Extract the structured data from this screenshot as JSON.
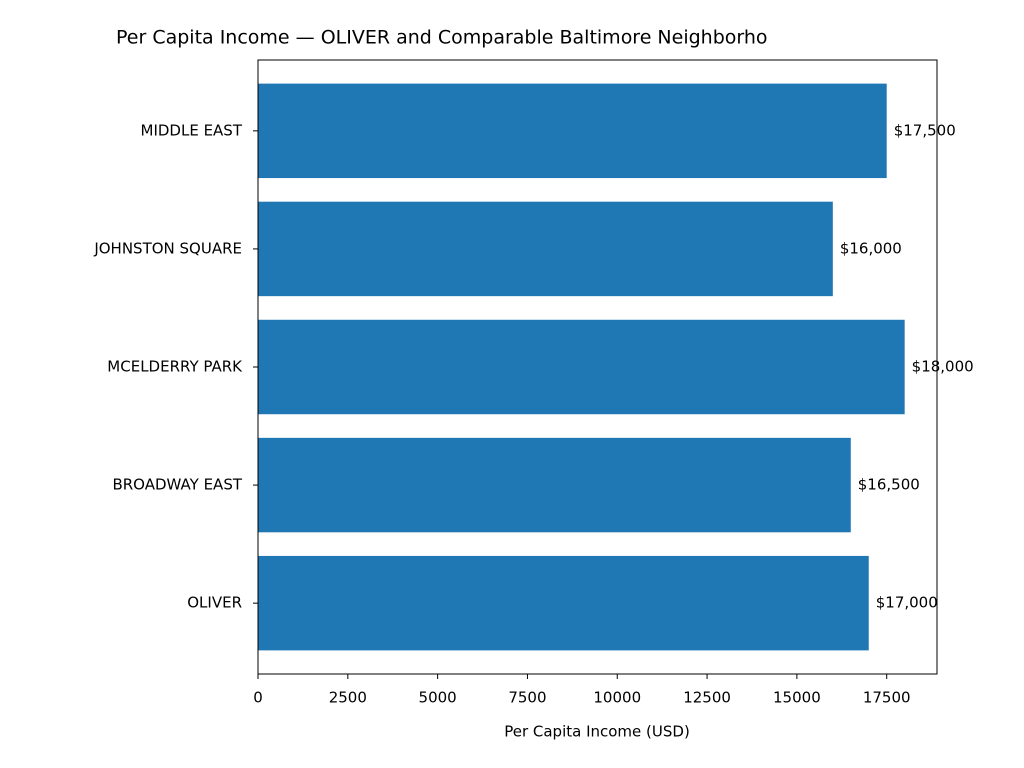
{
  "chart_data": {
    "type": "barh",
    "title": "Per Capita Income — OLIVER and Comparable Baltimore Neighborho",
    "x_label": "Per Capita Income (USD)",
    "categories": [
      "OLIVER",
      "BROADWAY EAST",
      "MCELDERRY PARK",
      "JOHNSTON SQUARE",
      "MIDDLE EAST"
    ],
    "values": [
      17000,
      16500,
      18000,
      16000,
      17500
    ],
    "value_labels": [
      "$17,000",
      "$16,500",
      "$18,000",
      "$16,000",
      "$17,500"
    ],
    "color": "#1f77b4",
    "xlim": [
      0,
      18900
    ],
    "xticks": [
      0,
      2500,
      5000,
      7500,
      10000,
      12500,
      15000,
      17500
    ],
    "grid": false
  }
}
